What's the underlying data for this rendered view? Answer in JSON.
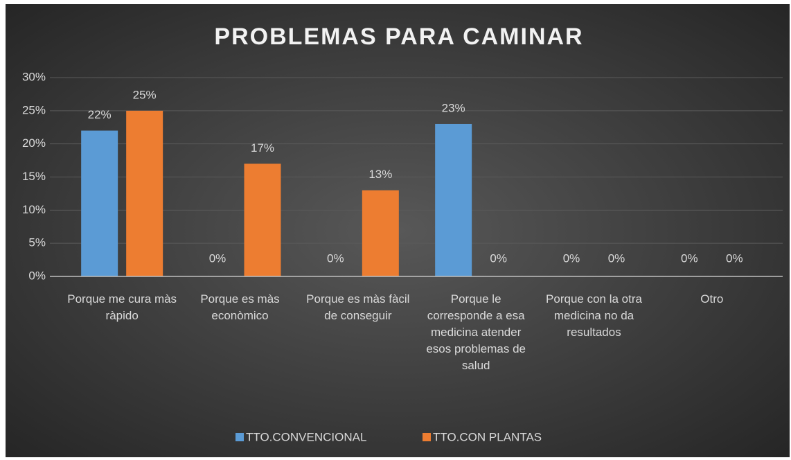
{
  "chart_data": {
    "type": "bar",
    "title": "PROBLEMAS PARA CAMINAR",
    "categories": [
      "Porque me cura màs ràpido",
      "Porque es màs econòmico",
      "Porque es màs fàcil de conseguir",
      "Porque le corresponde a esa medicina atender esos problemas de salud",
      "Porque con la otra medicina no da resultados",
      "Otro"
    ],
    "series": [
      {
        "name": "TTO.CONVENCIONAL",
        "color": "#5b9bd5",
        "values": [
          22,
          0,
          0,
          23,
          0,
          0
        ],
        "value_labels": [
          "22%",
          "0%",
          "0%",
          "23%",
          "0%",
          "0%"
        ]
      },
      {
        "name": "TTO.CON PLANTAS",
        "color": "#ed7d31",
        "values": [
          25,
          17,
          13,
          0,
          0,
          0
        ],
        "value_labels": [
          "25%",
          "17%",
          "13%",
          "0%",
          "0%",
          "0%"
        ]
      }
    ],
    "ylim": [
      0,
      30
    ],
    "yticks": [
      {
        "value": 0,
        "label": "0%"
      },
      {
        "value": 5,
        "label": "5%"
      },
      {
        "value": 10,
        "label": "10%"
      },
      {
        "value": 15,
        "label": "15%"
      },
      {
        "value": 20,
        "label": "20%"
      },
      {
        "value": 25,
        "label": "25%"
      },
      {
        "value": 30,
        "label": "30%"
      }
    ],
    "grid": true,
    "legend": "bottom"
  }
}
